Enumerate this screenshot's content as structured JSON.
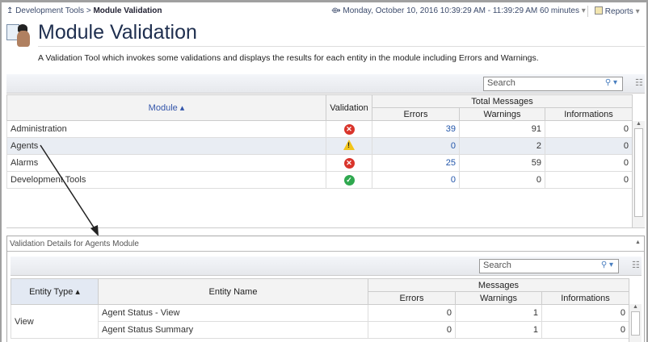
{
  "breadcrumb": {
    "parent": "Development Tools",
    "current": "Module Validation"
  },
  "time_range": "Monday, October 10, 2016 10:39:29 AM - 11:39:29 AM 60 minutes",
  "reports_label": "Reports",
  "page": {
    "title": "Module Validation",
    "description": "A Validation Tool which invokes some validations and displays the results for each entity in the module including Errors and Warnings."
  },
  "module_table": {
    "search_placeholder": "Search",
    "headers": {
      "module": "Module",
      "validation": "Validation",
      "group": "Total Messages",
      "errors": "Errors",
      "warnings": "Warnings",
      "informations": "Informations"
    },
    "rows": [
      {
        "module": "Administration",
        "status": "error",
        "errors": "39",
        "warnings": "91",
        "informations": "0"
      },
      {
        "module": "Agents",
        "status": "warning",
        "errors": "0",
        "warnings": "2",
        "informations": "0",
        "selected": true
      },
      {
        "module": "Alarms",
        "status": "error",
        "errors": "25",
        "warnings": "59",
        "informations": "0"
      },
      {
        "module": "Development Tools",
        "status": "ok",
        "errors": "0",
        "warnings": "0",
        "informations": "0"
      }
    ]
  },
  "details": {
    "title": "Validation Details for Agents Module",
    "search_placeholder": "Search",
    "headers": {
      "entity_type": "Entity Type",
      "entity_name": "Entity Name",
      "group": "Messages",
      "errors": "Errors",
      "warnings": "Warnings",
      "informations": "Informations"
    },
    "entity_type": "View",
    "rows": [
      {
        "name": "Agent Status - View",
        "errors": "0",
        "warnings": "1",
        "informations": "0"
      },
      {
        "name": "Agent Status Summary",
        "errors": "0",
        "warnings": "1",
        "informations": "0"
      }
    ]
  },
  "colors": {
    "error": "#d9342b",
    "warning": "#f2c418",
    "ok": "#2fa84f"
  }
}
